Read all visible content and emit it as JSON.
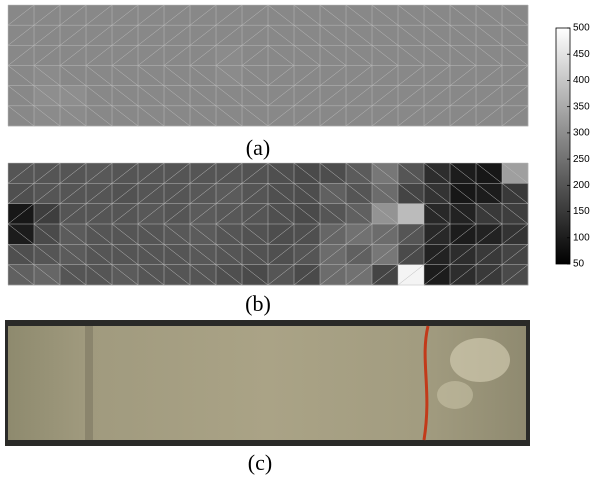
{
  "captions": [
    "(a)",
    "(b)",
    "(c)"
  ],
  "colorbar": {
    "lim": [
      50,
      500
    ],
    "ticks": [
      50,
      100,
      150,
      200,
      250,
      300,
      350,
      400,
      450,
      500
    ]
  },
  "mesh_a": {
    "values": [
      [
        290,
        290,
        290,
        290,
        290,
        290,
        290,
        290,
        290,
        290,
        290,
        290,
        290,
        290,
        290,
        290,
        290,
        290,
        290,
        290
      ],
      [
        290,
        290,
        290,
        290,
        290,
        290,
        290,
        290,
        290,
        290,
        290,
        290,
        290,
        290,
        290,
        290,
        290,
        290,
        290,
        290
      ],
      [
        290,
        290,
        290,
        290,
        290,
        290,
        290,
        290,
        295,
        290,
        290,
        290,
        290,
        290,
        290,
        290,
        290,
        290,
        290,
        290
      ],
      [
        290,
        295,
        290,
        290,
        290,
        290,
        290,
        290,
        295,
        290,
        290,
        290,
        290,
        290,
        290,
        290,
        290,
        290,
        290,
        290
      ],
      [
        290,
        300,
        300,
        290,
        290,
        290,
        290,
        290,
        290,
        290,
        290,
        290,
        290,
        290,
        290,
        290,
        290,
        290,
        290,
        290
      ],
      [
        290,
        295,
        295,
        290,
        290,
        290,
        290,
        290,
        290,
        290,
        290,
        290,
        290,
        290,
        290,
        290,
        290,
        290,
        290,
        290
      ]
    ]
  },
  "mesh_b": {
    "values": [
      [
        200,
        200,
        200,
        205,
        200,
        200,
        200,
        200,
        200,
        195,
        190,
        180,
        185,
        210,
        260,
        200,
        130,
        100,
        90,
        330
      ],
      [
        190,
        200,
        200,
        200,
        195,
        200,
        200,
        205,
        210,
        200,
        190,
        185,
        220,
        200,
        240,
        170,
        140,
        90,
        100,
        150
      ],
      [
        90,
        160,
        200,
        200,
        200,
        205,
        200,
        210,
        205,
        200,
        190,
        180,
        200,
        220,
        310,
        380,
        120,
        110,
        150,
        160
      ],
      [
        100,
        180,
        210,
        200,
        200,
        200,
        205,
        210,
        200,
        195,
        185,
        190,
        230,
        250,
        240,
        200,
        120,
        100,
        110,
        140
      ],
      [
        190,
        200,
        210,
        200,
        200,
        200,
        200,
        205,
        200,
        195,
        190,
        200,
        240,
        220,
        260,
        180,
        110,
        130,
        150,
        170
      ],
      [
        220,
        230,
        200,
        200,
        210,
        200,
        200,
        200,
        190,
        180,
        200,
        180,
        240,
        250,
        170,
        480,
        100,
        130,
        150,
        180
      ]
    ]
  }
}
